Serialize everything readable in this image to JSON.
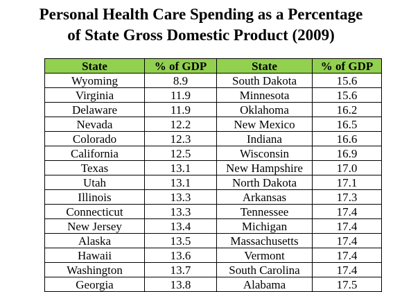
{
  "header_color": "#92d050",
  "chart_data": {
    "type": "table",
    "title_line1": "Personal Health Care Spending as a Percentage",
    "title_line2": "of State Gross Domestic Product (2009)",
    "columns": [
      "State",
      "% of GDP",
      "State",
      "% of GDP"
    ],
    "rows": [
      [
        "Wyoming",
        "8.9",
        "South Dakota",
        "15.6"
      ],
      [
        "Virginia",
        "11.9",
        "Minnesota",
        "15.6"
      ],
      [
        "Delaware",
        "11.9",
        "Oklahoma",
        "16.2"
      ],
      [
        "Nevada",
        "12.2",
        "New Mexico",
        "16.5"
      ],
      [
        "Colorado",
        "12.3",
        "Indiana",
        "16.6"
      ],
      [
        "California",
        "12.5",
        "Wisconsin",
        "16.9"
      ],
      [
        "Texas",
        "13.1",
        "New Hampshire",
        "17.0"
      ],
      [
        "Utah",
        "13.1",
        "North Dakota",
        "17.1"
      ],
      [
        "Illinois",
        "13.3",
        "Arkansas",
        "17.3"
      ],
      [
        "Connecticut",
        "13.3",
        "Tennessee",
        "17.4"
      ],
      [
        "New Jersey",
        "13.4",
        "Michigan",
        "17.4"
      ],
      [
        "Alaska",
        "13.5",
        "Massachusetts",
        "17.4"
      ],
      [
        "Hawaii",
        "13.6",
        "Vermont",
        "17.4"
      ],
      [
        "Washington",
        "13.7",
        "South Carolina",
        "17.4"
      ],
      [
        "Georgia",
        "13.8",
        "Alabama",
        "17.5"
      ]
    ]
  }
}
